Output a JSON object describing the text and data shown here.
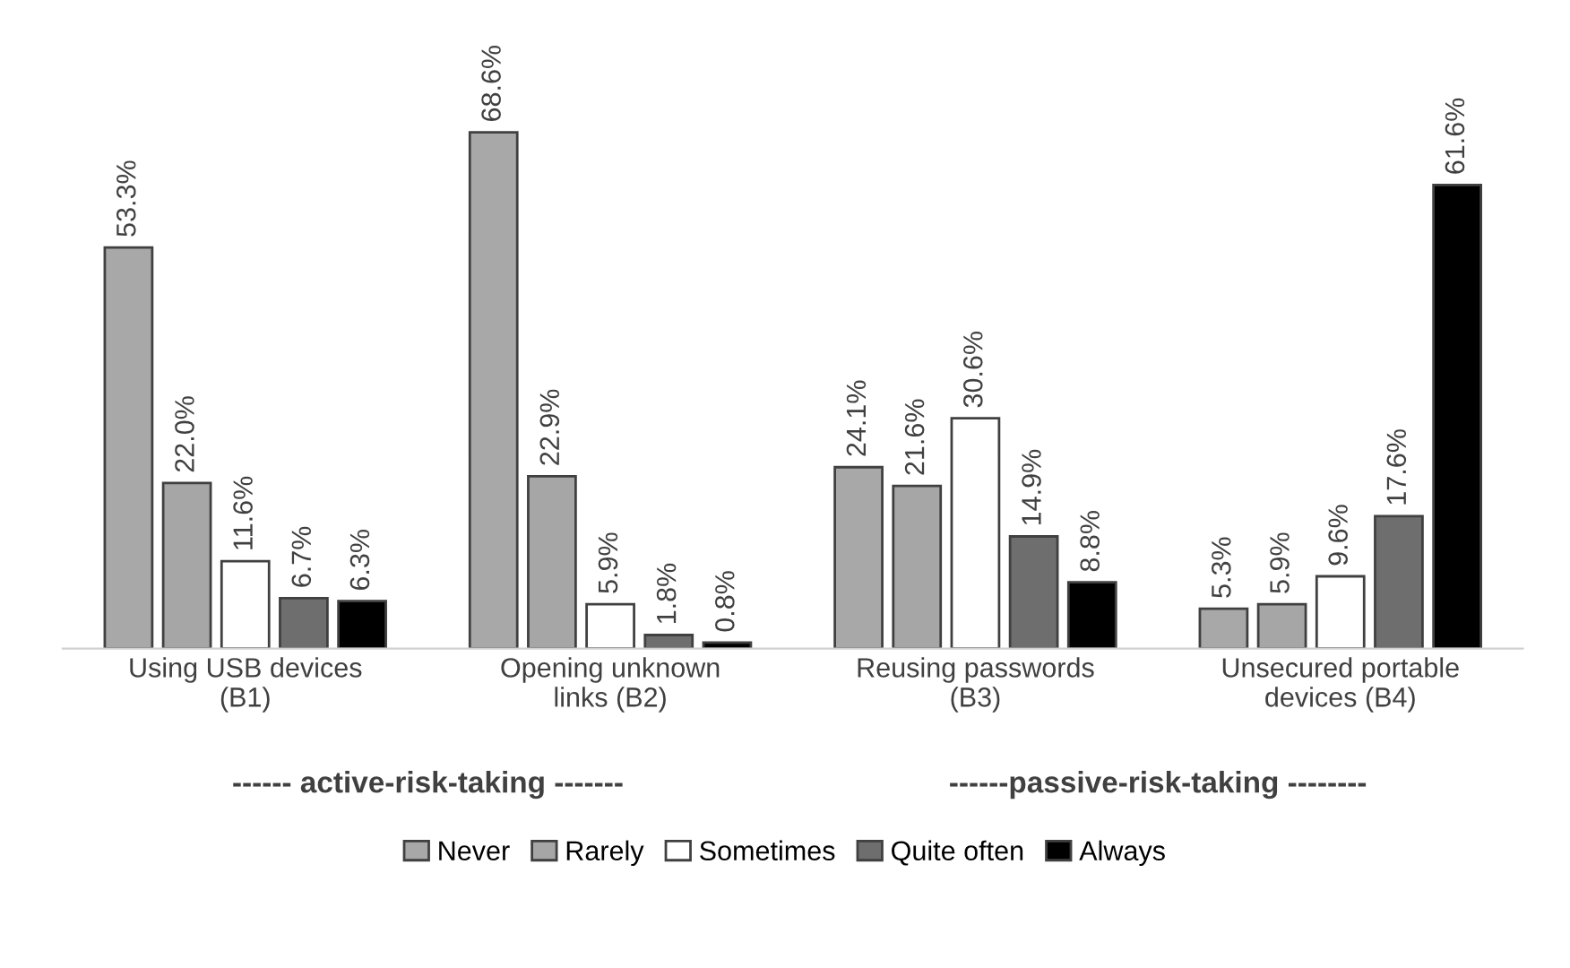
{
  "chart_data": {
    "type": "bar",
    "categories": [
      "Using USB devices\n(B1)",
      "Opening unknown\nlinks (B2)",
      "Reusing passwords\n(B3)",
      "Unsecured portable\ndevices (B4)"
    ],
    "series": [
      {
        "name": "Never",
        "color": "#a8a8a8",
        "values": [
          53.3,
          68.6,
          24.1,
          5.3
        ],
        "value_labels": [
          "53.3%",
          "68.6%",
          "24.1%",
          "5.3%"
        ]
      },
      {
        "name": "Rarely",
        "color": "#a6a6a6",
        "values": [
          22.0,
          22.9,
          21.6,
          5.9
        ],
        "value_labels": [
          "22.0%",
          "22.9%",
          "21.6%",
          "5.9%"
        ]
      },
      {
        "name": "Sometimes",
        "color": "#ffffff",
        "values": [
          11.6,
          5.9,
          30.6,
          9.6
        ],
        "value_labels": [
          "11.6%",
          "5.9%",
          "30.6%",
          "9.6%"
        ]
      },
      {
        "name": "Quite often",
        "color": "#6e6e6e",
        "values": [
          6.7,
          1.8,
          14.9,
          17.6
        ],
        "value_labels": [
          "6.7%",
          "1.8%",
          "14.9%",
          "17.6%"
        ]
      },
      {
        "name": "Always",
        "color": "#000000",
        "values": [
          6.3,
          0.8,
          8.8,
          61.6
        ],
        "value_labels": [
          "6.3%",
          "0.8%",
          "8.8%",
          "61.6%"
        ]
      }
    ],
    "annotations": [
      "------ active-risk-taking -------",
      "------passive-risk-taking --------"
    ],
    "legend": "bottom"
  }
}
